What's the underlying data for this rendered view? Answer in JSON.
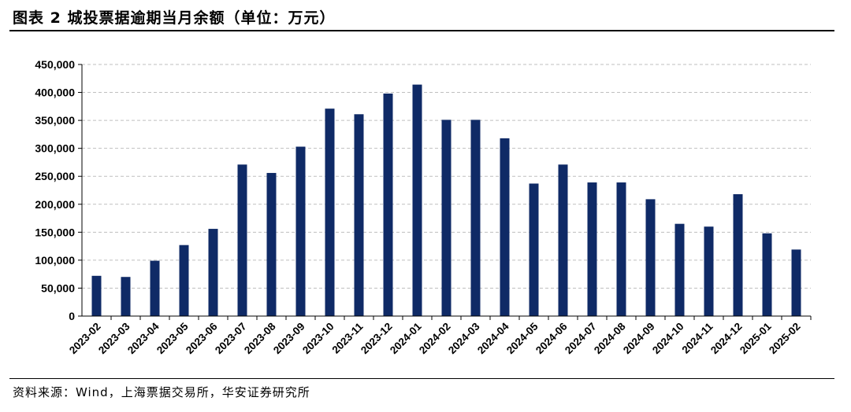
{
  "figure": {
    "label": "图表 2",
    "title": "城投票据逾期当月余额（单位：万元）",
    "source": "资料来源：Wind，上海票据交易所，华安证券研究所"
  },
  "colors": {
    "bar": "#0f2a66",
    "grid": "#bfbfbf",
    "axis": "#000000"
  },
  "chart_data": {
    "type": "bar",
    "title": "城投票据逾期当月余额（单位：万元）",
    "xlabel": "",
    "ylabel": "",
    "ylim": [
      0,
      450000
    ],
    "yticks": [
      0,
      50000,
      100000,
      150000,
      200000,
      250000,
      300000,
      350000,
      400000,
      450000
    ],
    "ytick_labels": [
      "0",
      "50,000",
      "100,000",
      "150,000",
      "200,000",
      "250,000",
      "300,000",
      "350,000",
      "400,000",
      "450,000"
    ],
    "grid": true,
    "legend": "none",
    "categories": [
      "2023-02",
      "2023-03",
      "2023-04",
      "2023-05",
      "2023-06",
      "2023-07",
      "2023-08",
      "2023-09",
      "2023-10",
      "2023-11",
      "2023-12",
      "2024-01",
      "2024-02",
      "2024-03",
      "2024-04",
      "2024-05",
      "2024-06",
      "2024-07",
      "2024-08",
      "2024-09",
      "2024-10",
      "2024-11",
      "2024-12",
      "2025-01",
      "2025-02"
    ],
    "values": [
      72000,
      70000,
      99000,
      127000,
      156000,
      271000,
      256000,
      303000,
      371000,
      361000,
      398000,
      414000,
      351000,
      351000,
      318000,
      237000,
      271000,
      239000,
      239000,
      209000,
      165000,
      160000,
      218000,
      148000,
      119000
    ]
  }
}
